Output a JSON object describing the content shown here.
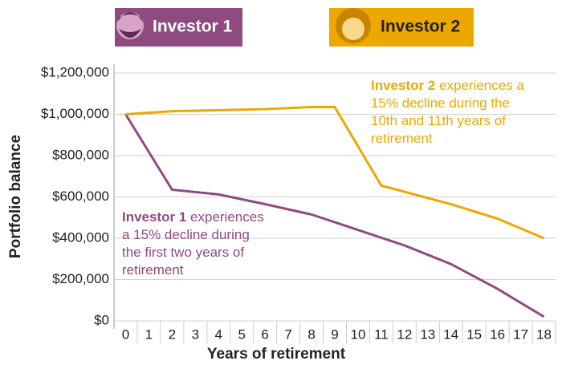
{
  "chart_data": {
    "type": "line",
    "x_label": "Years of retirement",
    "y_label": "Portfolio balance",
    "xlim": [
      -0.5,
      18.5
    ],
    "xticks": [
      0,
      1,
      2,
      3,
      4,
      5,
      6,
      7,
      8,
      9,
      10,
      11,
      12,
      13,
      14,
      15,
      16,
      17,
      18
    ],
    "ylim": [
      0,
      1200000
    ],
    "yticks": [
      {
        "value": 0,
        "label": "$0"
      },
      {
        "value": 200000,
        "label": "$200,000"
      },
      {
        "value": 400000,
        "label": "$400,000"
      },
      {
        "value": 600000,
        "label": "$600,000"
      },
      {
        "value": 800000,
        "label": "$800,000"
      },
      {
        "value": 1000000,
        "label": "$1,000,000"
      },
      {
        "value": 1200000,
        "label": "$1,200,000"
      }
    ],
    "grid": true,
    "series": [
      {
        "name": "Investor 1",
        "color": "#8f4a7f",
        "x": [
          0,
          2,
          4,
          6,
          8,
          10,
          12,
          14,
          16,
          18
        ],
        "values": [
          1000000,
          635000,
          612000,
          565000,
          515000,
          440000,
          365000,
          275000,
          155000,
          20000
        ]
      },
      {
        "name": "Investor 2",
        "color": "#eda800",
        "x": [
          0,
          2,
          4,
          6,
          8,
          9,
          11,
          14,
          16,
          18
        ],
        "values": [
          1000000,
          1015000,
          1020000,
          1025000,
          1035000,
          1035000,
          655000,
          565000,
          495000,
          400000
        ]
      }
    ],
    "annotations": [
      {
        "bold": "Investor 2",
        "lines": [
          " experiences a",
          "15% decline during the",
          "10th and 11th years of",
          "retirement"
        ]
      },
      {
        "bold": "Investor 1",
        "lines": [
          " experiences",
          "a 15% decline during",
          "the first two years of",
          "retirement"
        ]
      }
    ]
  }
}
